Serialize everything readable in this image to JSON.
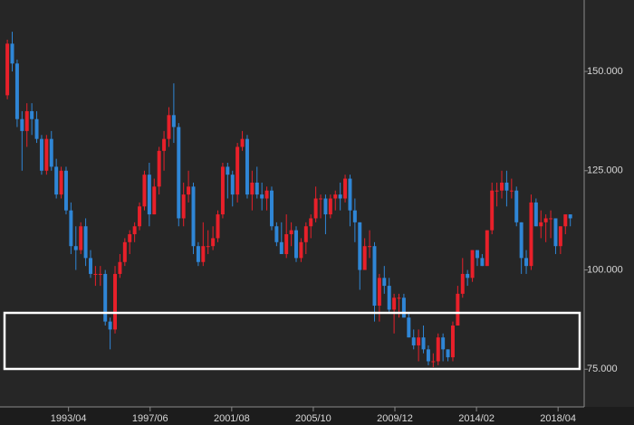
{
  "chart_data": {
    "type": "candlestick",
    "x": [
      "1990/01",
      "1990/04",
      "1990/07",
      "1990/10",
      "1991/01",
      "1991/04",
      "1991/07",
      "1991/10",
      "1992/01",
      "1992/04",
      "1992/07",
      "1992/10",
      "1993/01",
      "1993/04",
      "1993/07",
      "1993/10",
      "1994/01",
      "1994/04",
      "1994/07",
      "1994/10",
      "1995/01",
      "1995/04",
      "1995/07",
      "1995/10",
      "1996/01",
      "1996/04",
      "1996/07",
      "1996/10",
      "1997/01",
      "1997/04",
      "1997/07",
      "1997/10",
      "1998/01",
      "1998/04",
      "1998/07",
      "1998/10",
      "1999/01",
      "1999/04",
      "1999/07",
      "1999/10",
      "2000/01",
      "2000/04",
      "2000/07",
      "2000/10",
      "2001/01",
      "2001/04",
      "2001/07",
      "2001/10",
      "2002/01",
      "2002/04",
      "2002/07",
      "2002/10",
      "2003/01",
      "2003/04",
      "2003/07",
      "2003/10",
      "2004/01",
      "2004/04",
      "2004/07",
      "2004/10",
      "2005/01",
      "2005/04",
      "2005/07",
      "2005/10",
      "2006/01",
      "2006/04",
      "2006/07",
      "2006/10",
      "2007/01",
      "2007/04",
      "2007/07",
      "2007/10",
      "2008/01",
      "2008/04",
      "2008/07",
      "2008/10",
      "2009/01",
      "2009/04",
      "2009/07",
      "2009/10",
      "2010/01",
      "2010/04",
      "2010/07",
      "2010/10",
      "2011/01",
      "2011/04",
      "2011/07",
      "2011/10",
      "2012/01",
      "2012/04",
      "2012/07",
      "2012/10",
      "2013/01",
      "2013/04",
      "2013/07",
      "2013/10",
      "2014/01",
      "2014/04",
      "2014/07",
      "2014/10",
      "2015/01",
      "2015/04",
      "2015/07",
      "2015/10",
      "2016/01",
      "2016/04",
      "2016/07",
      "2016/10",
      "2017/01",
      "2017/04",
      "2017/07",
      "2017/10",
      "2018/01",
      "2018/04",
      "2018/07",
      "2018/10"
    ],
    "open": [
      144,
      157,
      152,
      138,
      135,
      140,
      138,
      133,
      125,
      133,
      126,
      119,
      125,
      115,
      106,
      105,
      111,
      103,
      99,
      99,
      99,
      87,
      85,
      99,
      102,
      107,
      109,
      111,
      116,
      124,
      114,
      121,
      130,
      133,
      139,
      136,
      113,
      119,
      121,
      106,
      102,
      106,
      106,
      108,
      114,
      126,
      124,
      119,
      131,
      133,
      119,
      122,
      119,
      118,
      120,
      111,
      107,
      104,
      109,
      110,
      103,
      107,
      111,
      113,
      118,
      118,
      114,
      118,
      119,
      118,
      123,
      115,
      112,
      100,
      106,
      106,
      91,
      98,
      96,
      90,
      93,
      93,
      88,
      83,
      81,
      83,
      80,
      77,
      77,
      83,
      80,
      78,
      86,
      94,
      99,
      98,
      105,
      103,
      101,
      110,
      120,
      120,
      122,
      120,
      120,
      112,
      103,
      101,
      117,
      111,
      112,
      113,
      113,
      106,
      111,
      114
    ],
    "high": [
      158,
      160,
      153,
      140,
      142,
      142,
      140,
      134,
      134,
      135,
      128,
      126,
      126,
      117,
      111,
      112,
      113,
      105,
      101,
      101,
      100,
      88,
      101,
      104,
      108,
      110,
      112,
      117,
      125,
      127,
      123,
      131,
      135,
      141,
      147,
      137,
      122,
      125,
      122,
      107,
      112,
      110,
      111,
      115,
      127,
      127,
      125,
      132,
      135,
      134,
      125,
      126,
      122,
      121,
      121,
      112,
      112,
      114,
      112,
      111,
      108,
      112,
      114,
      121,
      119,
      119,
      119,
      120,
      122,
      124,
      124,
      118,
      112,
      108,
      110,
      107,
      99,
      101,
      98,
      94,
      94,
      94,
      89,
      85,
      85,
      86,
      81,
      79,
      84,
      84,
      80,
      87,
      96,
      103,
      100,
      105,
      105,
      104,
      110,
      122,
      122,
      125,
      125,
      123,
      121,
      112,
      105,
      119,
      118,
      115,
      114,
      115,
      113,
      111,
      114,
      114
    ],
    "low": [
      143,
      150,
      136,
      125,
      131,
      134,
      132,
      124,
      124,
      125,
      118,
      118,
      114,
      104,
      100,
      104,
      101,
      98,
      96,
      96,
      86,
      80,
      84,
      98,
      101,
      104,
      107,
      110,
      115,
      111,
      114,
      119,
      125,
      131,
      132,
      111,
      111,
      117,
      104,
      101,
      101,
      104,
      105,
      107,
      113,
      118,
      116,
      117,
      130,
      118,
      115,
      118,
      115,
      115,
      110,
      106,
      104,
      103,
      106,
      102,
      102,
      104,
      108,
      112,
      113,
      109,
      113,
      115,
      115,
      117,
      111,
      107,
      95,
      101,
      103,
      87,
      87,
      94,
      89,
      84,
      88,
      88,
      83,
      80,
      77,
      79,
      76,
      75.5,
      76,
      77,
      77,
      77,
      86,
      93,
      96,
      97,
      101,
      101,
      101,
      109,
      116,
      118,
      116,
      118,
      111,
      99,
      99,
      100,
      111,
      108,
      107,
      108,
      104,
      104,
      109,
      111
    ],
    "close": [
      157,
      152,
      138,
      135,
      140,
      138,
      133,
      125,
      133,
      126,
      119,
      125,
      115,
      106,
      105,
      111,
      103,
      99,
      99,
      99,
      87,
      85,
      99,
      102,
      107,
      109,
      111,
      116,
      124,
      114,
      121,
      130,
      133,
      139,
      136,
      113,
      119,
      121,
      106,
      102,
      106,
      106,
      108,
      114,
      126,
      124,
      119,
      131,
      133,
      119,
      122,
      119,
      118,
      120,
      111,
      107,
      104,
      109,
      110,
      103,
      107,
      111,
      113,
      118,
      118,
      114,
      118,
      119,
      118,
      123,
      115,
      112,
      100,
      106,
      106,
      91,
      98,
      96,
      90,
      93,
      93,
      88,
      83,
      81,
      83,
      80,
      77,
      77,
      83,
      80,
      78,
      86,
      94,
      99,
      98,
      105,
      103,
      101,
      110,
      120,
      120,
      122,
      120,
      120,
      112,
      103,
      101,
      117,
      111,
      112,
      113,
      113,
      106,
      111,
      114,
      113
    ],
    "up_color": "#e8202a",
    "down_color": "#2f86d6",
    "xlim": [
      "1989/10",
      "2019/08"
    ],
    "xticks": [
      "1993/04",
      "1997/06",
      "2001/08",
      "2005/10",
      "2009/12",
      "2014/02",
      "2018/04"
    ],
    "ylim": [
      65.5,
      168
    ],
    "yticks": [
      {
        "value": 75,
        "label": "75.000"
      },
      {
        "value": 100,
        "label": "100.000"
      },
      {
        "value": 125,
        "label": "125.000"
      },
      {
        "value": 150,
        "label": "150.000"
      }
    ]
  }
}
